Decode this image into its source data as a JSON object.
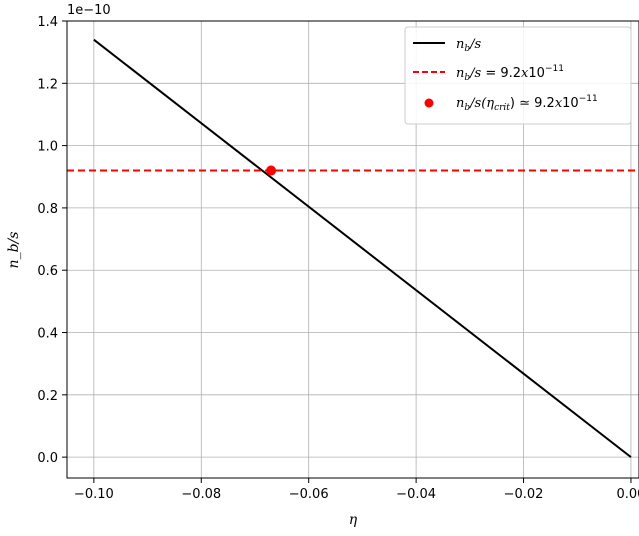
{
  "chart_data": {
    "type": "line",
    "xlabel": "η",
    "ylabel": "n_b/s",
    "offset_text": "1e−10",
    "xlim": [
      -0.105,
      0.0015
    ],
    "ylim": [
      -0.067,
      1.4
    ],
    "y_scale_factor": 1e-10,
    "grid": true,
    "legend_placement": "top-right",
    "x_ticks": [
      -0.1,
      -0.08,
      -0.06,
      -0.04,
      -0.02,
      0.0
    ],
    "x_tick_labels": [
      "−0.10",
      "−0.08",
      "−0.06",
      "−0.04",
      "−0.02",
      "0.00"
    ],
    "y_ticks": [
      0.0,
      0.2,
      0.4,
      0.6,
      0.8,
      1.0,
      1.2,
      1.4
    ],
    "y_tick_labels": [
      "0.0",
      "0.2",
      "0.4",
      "0.6",
      "0.8",
      "1.0",
      "1.2",
      "1.4"
    ],
    "series": [
      {
        "name": "n_b/s",
        "style": "solid",
        "color": "#000000",
        "x": [
          -0.1,
          0.0
        ],
        "y": [
          1.34,
          0.0
        ]
      },
      {
        "name": "n_b/s = 9.2x10^-11",
        "style": "dashed",
        "color": "#ff0000",
        "y_const": 0.92
      },
      {
        "name": "n_b/s(η_crit) ≃ 9.2x10^-11",
        "style": "marker",
        "color": "#ff0000",
        "x": [
          -0.067
        ],
        "y": [
          0.92
        ]
      }
    ]
  }
}
